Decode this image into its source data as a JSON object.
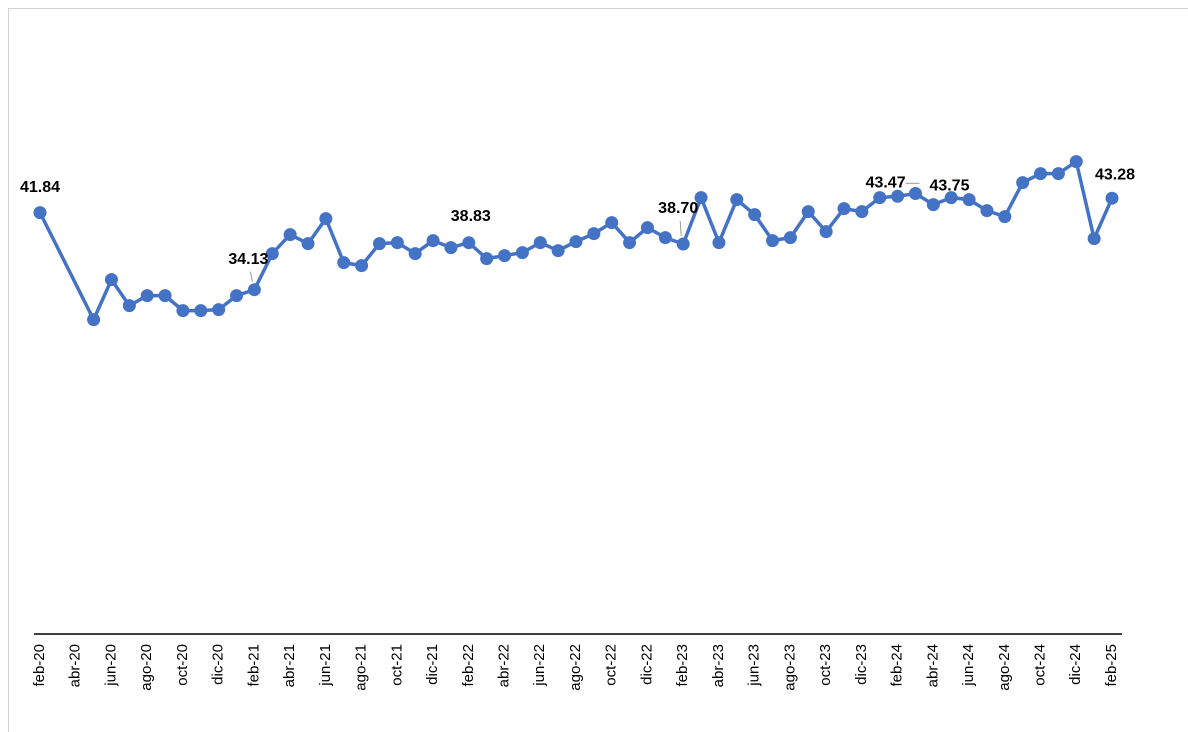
{
  "chart_data": {
    "type": "line",
    "categories": [
      "feb-20",
      null,
      "abr-20",
      null,
      "jun-20",
      null,
      "ago-20",
      null,
      "oct-20",
      null,
      "dic-20",
      null,
      "feb-21",
      null,
      "abr-21",
      null,
      "jun-21",
      null,
      "ago-21",
      null,
      "oct-21",
      null,
      "dic-21",
      null,
      "feb-22",
      null,
      "abr-22",
      null,
      "jun-22",
      null,
      "ago-22",
      null,
      "oct-22",
      null,
      "dic-22",
      null,
      "feb-23",
      null,
      "abr-23",
      null,
      "jun-23",
      null,
      "ago-23",
      null,
      "oct-23",
      null,
      "dic-23",
      null,
      "feb-24",
      null,
      "abr-24",
      null,
      "jun-24",
      null,
      "ago-24",
      null,
      "oct-24",
      null,
      "dic-24",
      null,
      "feb-25"
    ],
    "series": [
      {
        "color": "#4472c4",
        "values": [
          41.84,
          null,
          null,
          31.14,
          35.14,
          32.54,
          33.54,
          33.54,
          32.04,
          32.04,
          32.14,
          33.54,
          34.13,
          37.74,
          39.64,
          38.74,
          41.24,
          36.84,
          36.54,
          38.74,
          38.84,
          37.74,
          39.04,
          38.34,
          38.83,
          37.24,
          37.54,
          37.84,
          38.84,
          38.04,
          38.94,
          39.74,
          40.84,
          38.84,
          40.34,
          39.34,
          38.7,
          43.34,
          38.84,
          43.14,
          41.64,
          39.04,
          39.34,
          41.94,
          39.94,
          42.24,
          41.94,
          43.34,
          43.47,
          43.75,
          42.64,
          43.34,
          43.14,
          42.04,
          41.44,
          44.84,
          45.74,
          45.74,
          46.94,
          39.24,
          43.28
        ],
        "value_labels": [
          "41.84",
          null,
          null,
          null,
          null,
          null,
          null,
          null,
          null,
          null,
          null,
          null,
          "34.13",
          null,
          null,
          null,
          null,
          null,
          null,
          null,
          null,
          null,
          null,
          null,
          "38.83",
          null,
          null,
          null,
          null,
          null,
          null,
          null,
          null,
          null,
          null,
          null,
          "38.70",
          null,
          null,
          null,
          null,
          null,
          null,
          null,
          null,
          null,
          null,
          null,
          "43.47",
          "43.75",
          null,
          null,
          null,
          null,
          null,
          null,
          null,
          null,
          null,
          null,
          "43.28"
        ]
      }
    ],
    "ylim": [
      0,
      60
    ]
  }
}
